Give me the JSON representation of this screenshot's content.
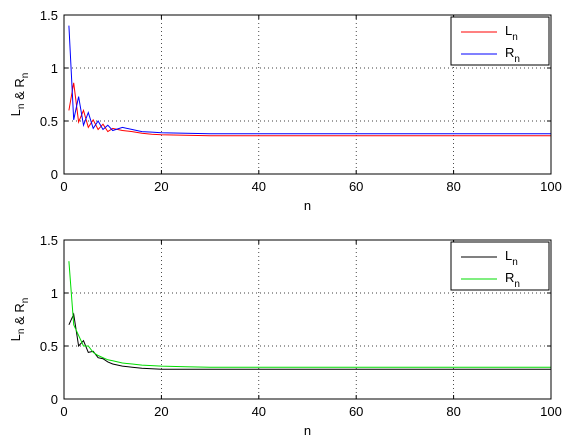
{
  "chart_data": [
    {
      "type": "line",
      "xlabel": "n",
      "ylabel": "L_n & R_n",
      "xlim": [
        0,
        100
      ],
      "ylim": [
        0,
        1.5
      ],
      "xticks": [
        "0",
        "20",
        "40",
        "60",
        "80",
        "100"
      ],
      "yticks": [
        "0",
        "0.5",
        "1",
        "1.5"
      ],
      "grid": true,
      "legend_position": "top-right",
      "series": [
        {
          "name": "L_n",
          "color": "#ff0000",
          "x": [
            1,
            2,
            3,
            4,
            5,
            6,
            7,
            8,
            9,
            10,
            12,
            14,
            16,
            18,
            20,
            25,
            30,
            40,
            50,
            60,
            70,
            80,
            90,
            100
          ],
          "y": [
            0.6,
            0.86,
            0.49,
            0.6,
            0.44,
            0.51,
            0.42,
            0.47,
            0.4,
            0.43,
            0.41,
            0.4,
            0.385,
            0.375,
            0.37,
            0.365,
            0.36,
            0.36,
            0.36,
            0.36,
            0.36,
            0.36,
            0.36,
            0.36
          ]
        },
        {
          "name": "R_n",
          "color": "#0000ff",
          "x": [
            1,
            2,
            3,
            4,
            5,
            6,
            7,
            8,
            9,
            10,
            12,
            14,
            16,
            18,
            20,
            25,
            30,
            40,
            50,
            60,
            70,
            80,
            90,
            100
          ],
          "y": [
            1.4,
            0.51,
            0.73,
            0.46,
            0.58,
            0.43,
            0.5,
            0.42,
            0.46,
            0.41,
            0.44,
            0.42,
            0.4,
            0.395,
            0.39,
            0.385,
            0.38,
            0.38,
            0.38,
            0.38,
            0.38,
            0.38,
            0.38,
            0.38
          ]
        }
      ]
    },
    {
      "type": "line",
      "xlabel": "n",
      "ylabel": "L_n & R_n",
      "xlim": [
        0,
        100
      ],
      "ylim": [
        0,
        1.5
      ],
      "xticks": [
        "0",
        "20",
        "40",
        "60",
        "80",
        "100"
      ],
      "yticks": [
        "0",
        "0.5",
        "1",
        "1.5"
      ],
      "grid": true,
      "legend_position": "top-right",
      "series": [
        {
          "name": "L_n",
          "color": "#000000",
          "x": [
            1,
            2,
            3,
            4,
            5,
            6,
            7,
            8,
            9,
            10,
            12,
            14,
            16,
            18,
            20,
            25,
            30,
            40,
            50,
            60,
            70,
            80,
            90,
            100
          ],
          "y": [
            0.7,
            0.8,
            0.5,
            0.55,
            0.44,
            0.45,
            0.39,
            0.38,
            0.35,
            0.33,
            0.31,
            0.3,
            0.29,
            0.285,
            0.28,
            0.28,
            0.28,
            0.28,
            0.28,
            0.28,
            0.28,
            0.28,
            0.28,
            0.28
          ]
        },
        {
          "name": "R_n",
          "color": "#00dd00",
          "x": [
            1,
            2,
            3,
            4,
            5,
            6,
            7,
            8,
            9,
            10,
            12,
            14,
            16,
            18,
            20,
            25,
            30,
            40,
            50,
            60,
            70,
            80,
            90,
            100
          ],
          "y": [
            1.3,
            0.7,
            0.6,
            0.5,
            0.5,
            0.44,
            0.41,
            0.39,
            0.37,
            0.36,
            0.34,
            0.33,
            0.32,
            0.315,
            0.31,
            0.305,
            0.3,
            0.3,
            0.3,
            0.3,
            0.3,
            0.3,
            0.3,
            0.3
          ]
        }
      ]
    }
  ]
}
